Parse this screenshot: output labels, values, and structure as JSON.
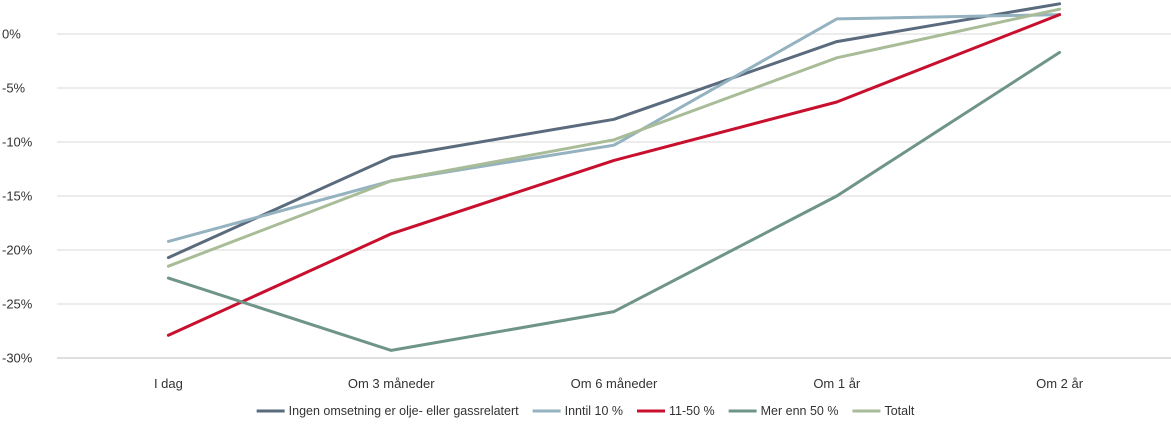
{
  "chart_data": {
    "type": "line",
    "title": "",
    "xlabel": "",
    "ylabel": "",
    "categories": [
      "I dag",
      "Om 3 måneder",
      "Om 6 måneder",
      "Om 1 år",
      "Om 2 år"
    ],
    "ylim": [
      -30,
      0
    ],
    "yticks": [
      0,
      -5,
      -10,
      -15,
      -20,
      -25,
      -30
    ],
    "ytick_labels": [
      "0%",
      "-5%",
      "-10%",
      "-15%",
      "-20%",
      "-25%",
      "-30%"
    ],
    "grid": true,
    "legend_position": "bottom",
    "series": [
      {
        "name": "Ingen omsetning er olje- eller gassrelatert",
        "color": "#5a6b7d",
        "values": [
          -20.7,
          -11.4,
          -7.9,
          -0.7,
          2.8
        ]
      },
      {
        "name": "Inntil 10 %",
        "color": "#94b2bf",
        "values": [
          -19.2,
          -13.6,
          -10.3,
          1.4,
          1.8
        ]
      },
      {
        "name": "11-50 %",
        "color": "#c8102e",
        "values": [
          -27.9,
          -18.5,
          -11.7,
          -6.3,
          1.8
        ]
      },
      {
        "name": "Mer enn 50 %",
        "color": "#6f9488",
        "values": [
          -22.6,
          -29.3,
          -25.7,
          -15.0,
          -1.7
        ]
      },
      {
        "name": "Totalt",
        "color": "#a9bc98",
        "values": [
          -21.5,
          -13.6,
          -9.8,
          -2.2,
          2.3
        ]
      }
    ]
  }
}
